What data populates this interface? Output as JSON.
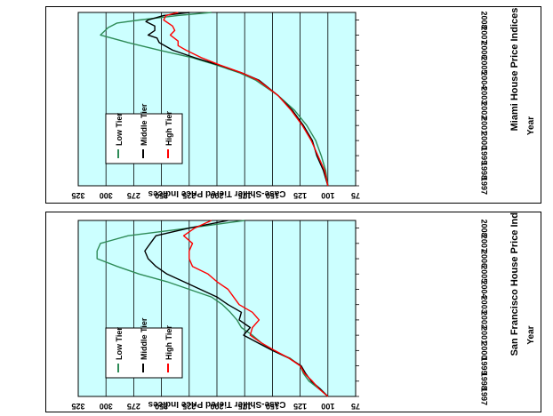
{
  "chart_data": [
    {
      "type": "line",
      "title": "Miami House Price Indices",
      "xlabel": "Year",
      "ylabel": "Case-Shiller Tiered Price Indices",
      "x_ticks": [
        "1997",
        "1998",
        "1999",
        "2000",
        "2001",
        "2002",
        "2003",
        "2004",
        "2005",
        "2006",
        "2007",
        "2008"
      ],
      "y_ticks": [
        75,
        100,
        125,
        150,
        175,
        200,
        225,
        250,
        275,
        300,
        325
      ],
      "xlim": [
        1997,
        2008.5
      ],
      "ylim": [
        75,
        325
      ],
      "grid": true,
      "plot_background": "#ccffff",
      "orientation": "rotated 90 degrees counterclockwise",
      "legend": "bottom-left",
      "series": [
        {
          "name": "Low Tier",
          "color": "#2e8b57",
          "x": [
            1997,
            1998,
            1999,
            2000,
            2001,
            2002,
            2003,
            2004,
            2004.5,
            2005,
            2005.5,
            2006,
            2006.5,
            2006.8,
            2007,
            2007.5,
            2007.8,
            2008,
            2008.3,
            2008.5
          ],
          "y": [
            100,
            102,
            106,
            111,
            119,
            130,
            145,
            165,
            180,
            200,
            222,
            252,
            280,
            295,
            305,
            298,
            290,
            270,
            235,
            205
          ]
        },
        {
          "name": "Middle Tier",
          "color": "#000000",
          "x": [
            1997,
            1998,
            1999,
            2000,
            2001,
            2002,
            2003,
            2004,
            2004.5,
            2005,
            2005.5,
            2006,
            2006.5,
            2006.8,
            2007,
            2007.3,
            2007.6,
            2007.9,
            2008,
            2008.3,
            2008.5
          ],
          "y": [
            100,
            104,
            110,
            114,
            122,
            132,
            145,
            162,
            178,
            198,
            220,
            240,
            252,
            254,
            262,
            256,
            256,
            264,
            262,
            248,
            225
          ]
        },
        {
          "name": "High Tier",
          "color": "#ff0000",
          "x": [
            1997,
            1998,
            1999,
            2000,
            2001,
            2002,
            2003,
            2004,
            2004.5,
            2005,
            2005.5,
            2006,
            2006.3,
            2006.6,
            2007,
            2007.3,
            2007.6,
            2008,
            2008.3,
            2008.5
          ],
          "y": [
            100,
            103,
            109,
            115,
            123,
            133,
            145,
            163,
            178,
            197,
            214,
            228,
            235,
            235,
            242,
            238,
            240,
            248,
            246,
            235
          ]
        }
      ]
    },
    {
      "type": "line",
      "title": "San Francisco House Price Indices",
      "xlabel": "Year",
      "ylabel": "Case-Shiller Tiered Price Indices",
      "x_ticks": [
        "1997",
        "1998",
        "1999",
        "2000",
        "2001",
        "2002",
        "2003",
        "2004",
        "2005",
        "2006",
        "2007",
        "2008"
      ],
      "y_ticks": [
        75,
        100,
        125,
        150,
        175,
        200,
        225,
        250,
        275,
        300,
        325
      ],
      "xlim": [
        1997,
        2008.5
      ],
      "ylim": [
        75,
        325
      ],
      "grid": true,
      "plot_background": "#ccffff",
      "orientation": "rotated 90 degrees counterclockwise",
      "legend": "bottom-left",
      "series": [
        {
          "name": "Low Tier",
          "color": "#2e8b57",
          "x": [
            1997,
            1997.5,
            1998,
            1998.5,
            1999,
            1999.5,
            2000,
            2000.5,
            2001,
            2001.5,
            2002,
            2002.5,
            2003,
            2003.5,
            2004,
            2004.5,
            2005,
            2005.5,
            2006,
            2006.5,
            2007,
            2007.5,
            2008,
            2008.5
          ],
          "y": [
            100,
            108,
            117,
            122,
            125,
            134,
            150,
            160,
            168,
            178,
            182,
            188,
            195,
            205,
            225,
            245,
            270,
            290,
            308,
            308,
            305,
            280,
            225,
            175
          ]
        },
        {
          "name": "Middle Tier",
          "color": "#000000",
          "x": [
            1997,
            1997.5,
            1998,
            1998.5,
            1999,
            1999.5,
            2000,
            2000.5,
            2001,
            2001.5,
            2002,
            2002.5,
            2003,
            2003.5,
            2004,
            2004.5,
            2005,
            2005.5,
            2006,
            2006.5,
            2007,
            2007.5,
            2008,
            2008.5
          ],
          "y": [
            100,
            107,
            115,
            120,
            124,
            135,
            150,
            163,
            176,
            170,
            180,
            178,
            190,
            200,
            215,
            230,
            245,
            255,
            262,
            265,
            260,
            255,
            225,
            190
          ]
        },
        {
          "name": "High Tier",
          "color": "#ff0000",
          "x": [
            1997,
            1997.5,
            1998,
            1998.5,
            1999,
            1999.5,
            2000,
            2000.5,
            2001,
            2001.5,
            2002,
            2002.5,
            2003,
            2003.5,
            2004,
            2004.5,
            2005,
            2005.5,
            2006,
            2006.5,
            2007,
            2007.5,
            2008,
            2008.5
          ],
          "y": [
            100,
            108,
            114,
            121,
            125,
            135,
            148,
            160,
            170,
            168,
            162,
            168,
            180,
            185,
            190,
            200,
            208,
            222,
            225,
            225,
            222,
            230,
            220,
            205
          ]
        }
      ]
    }
  ]
}
